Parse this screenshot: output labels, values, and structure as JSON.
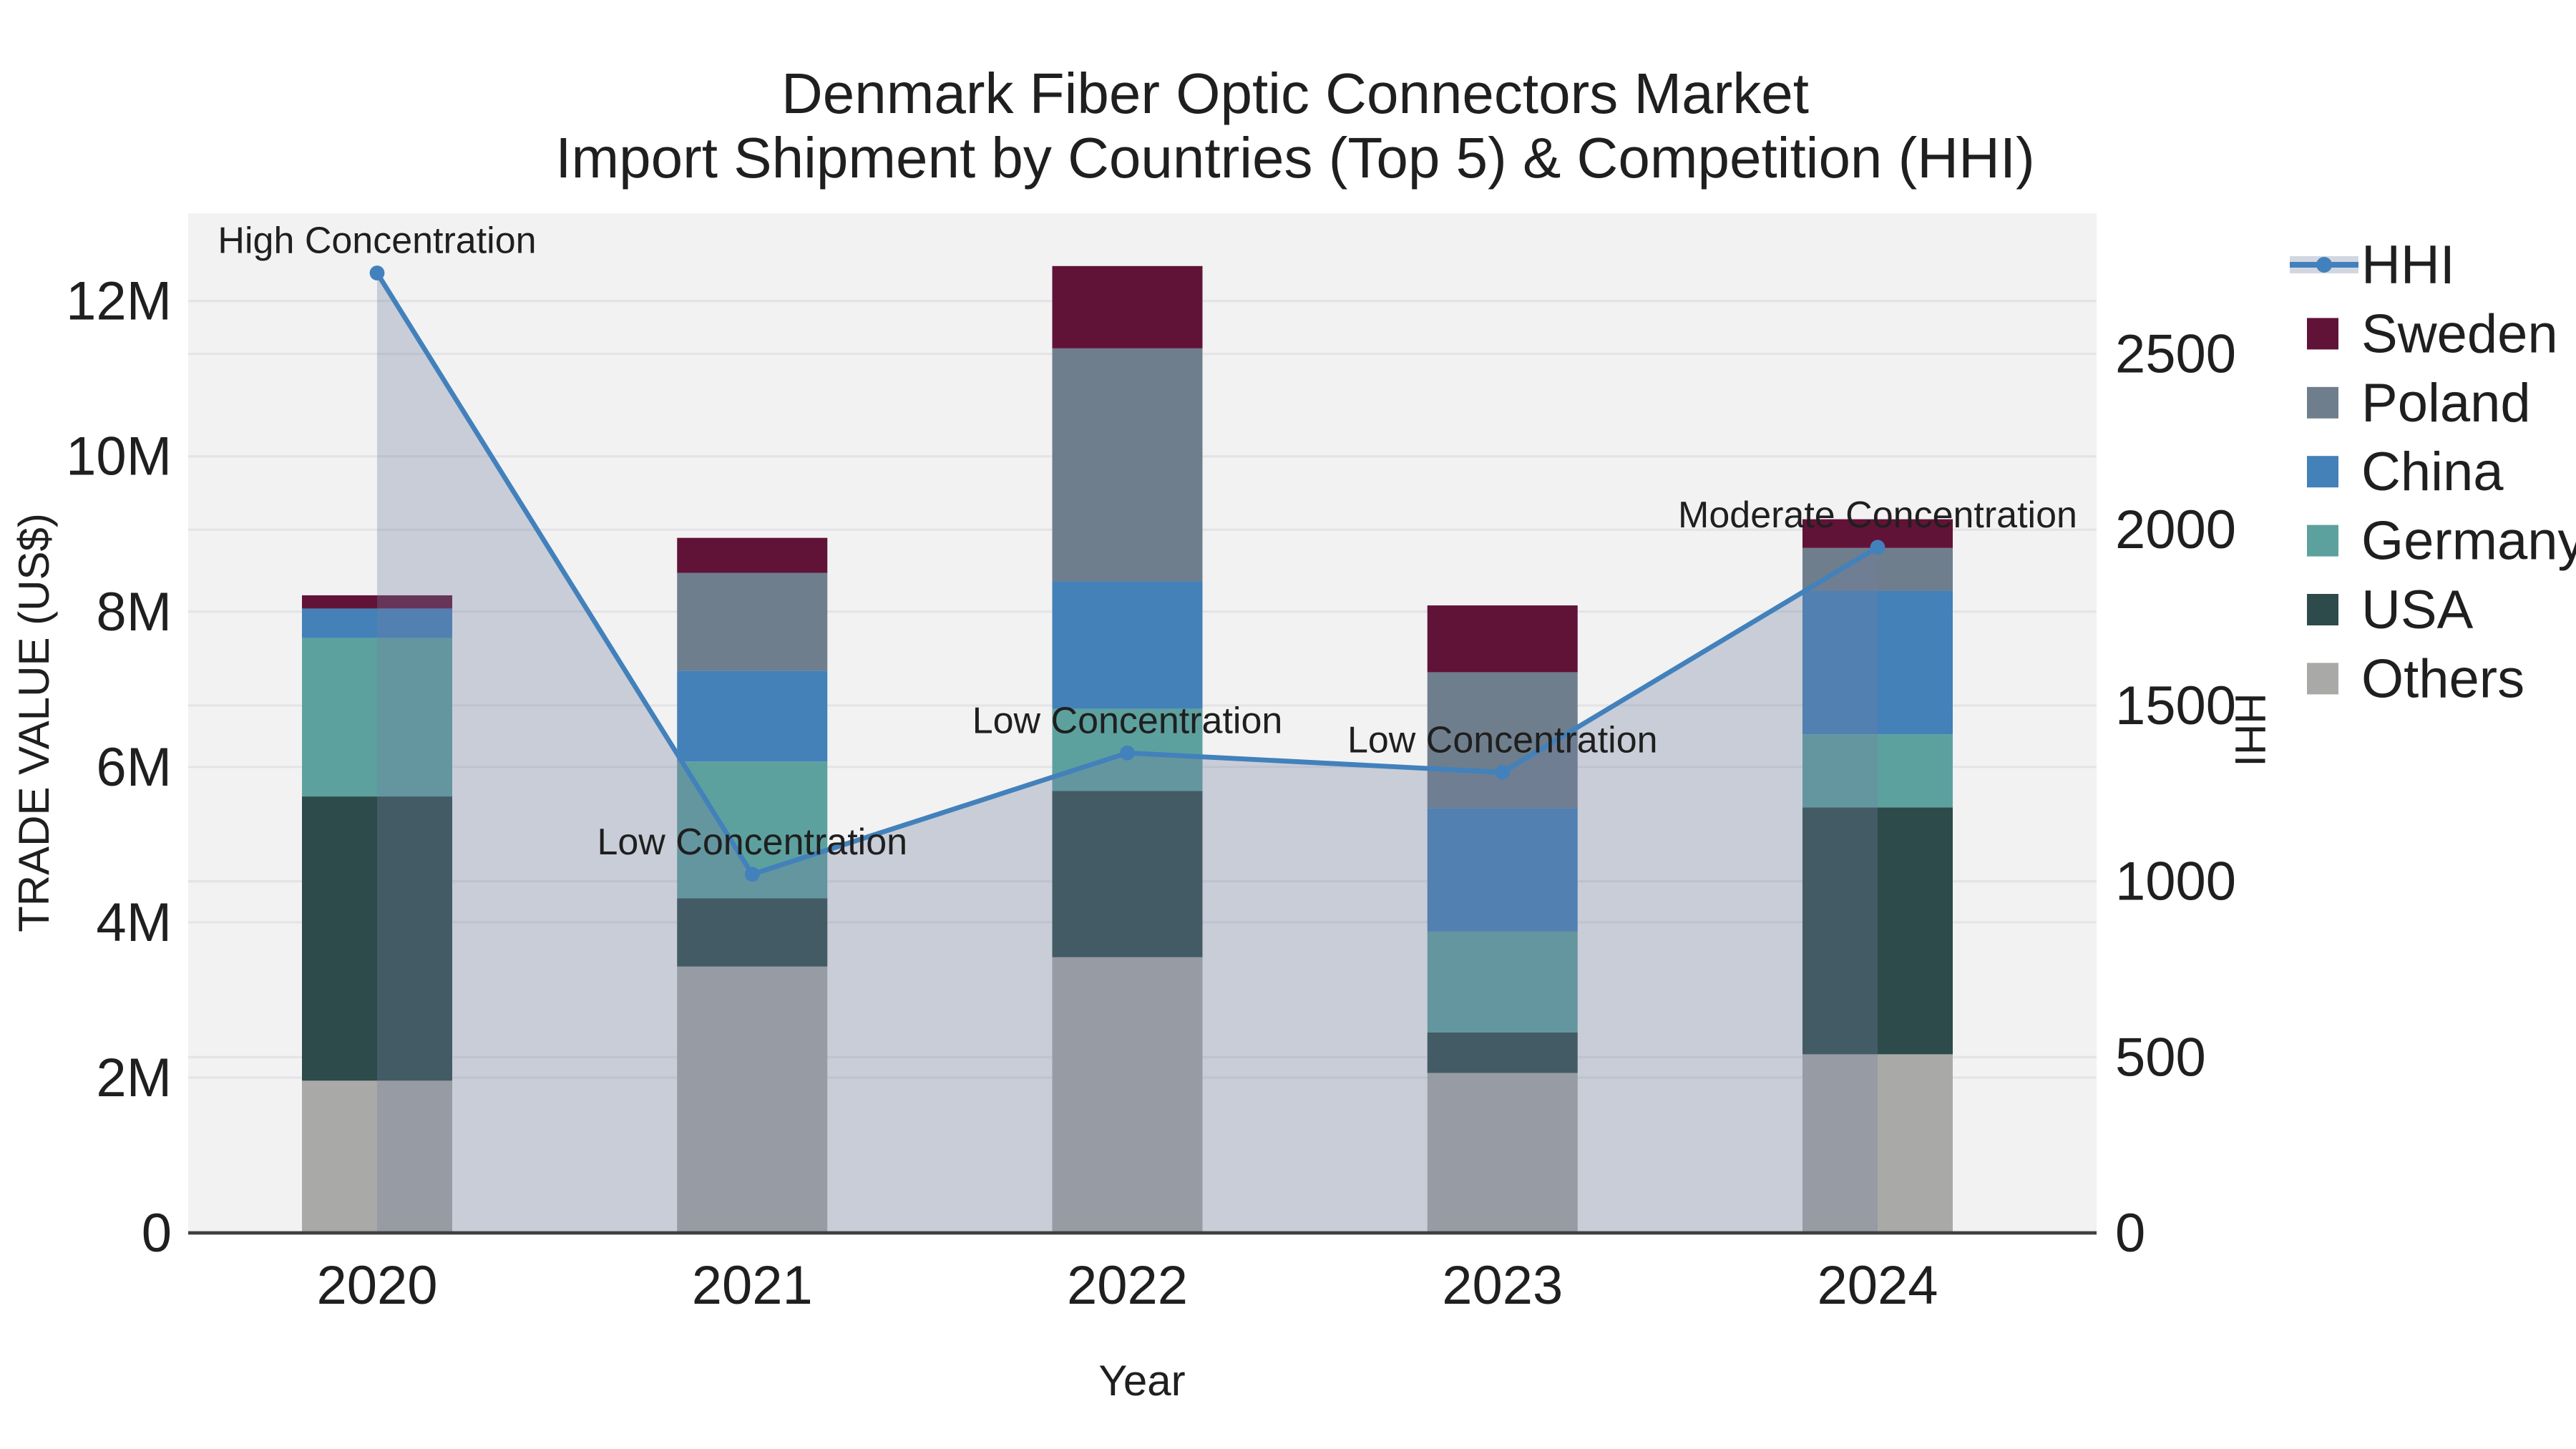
{
  "figure": {
    "title_line1": "Denmark Fiber Optic Connectors Market",
    "title_line2": "Import Shipment by Countries (Top 5) & Competition (HHI)"
  },
  "chart_data": {
    "type": "bar",
    "subtype": "stacked_bars_with_line_area_overlay",
    "title": "Denmark Fiber Optic Connectors Market Import Shipment by Countries (Top 5) & Competition (HHI)",
    "categories": [
      "2020",
      "2021",
      "2022",
      "2023",
      "2024"
    ],
    "xlabel": "Year",
    "grid": true,
    "legend_position": "right-outside",
    "plot_bg_color": "#f2f2f3",
    "gridline_color": "#e4e4e7",
    "axis_line_color": "#3f3f3f",
    "y_left": {
      "title": "TRADE VALUE (US$)",
      "unit": "million US$",
      "range": [
        0,
        13.13
      ],
      "ticks": [
        {
          "v": 0,
          "label": "0"
        },
        {
          "v": 2,
          "label": "2M"
        },
        {
          "v": 4,
          "label": "4M"
        },
        {
          "v": 6,
          "label": "6M"
        },
        {
          "v": 8,
          "label": "8M"
        },
        {
          "v": 10,
          "label": "10M"
        },
        {
          "v": 12,
          "label": "12M"
        }
      ]
    },
    "y_right": {
      "title": "HHI",
      "range": [
        0,
        2900
      ],
      "ticks": [
        {
          "v": 0,
          "label": "0"
        },
        {
          "v": 500,
          "label": "500"
        },
        {
          "v": 1000,
          "label": "1000"
        },
        {
          "v": 1500,
          "label": "1500"
        },
        {
          "v": 2000,
          "label": "2000"
        },
        {
          "v": 2500,
          "label": "2500"
        }
      ]
    },
    "bar_series_bottom_to_top": [
      {
        "name": "Others",
        "color": "#a9a9a7",
        "values_musd": [
          1.96,
          3.43,
          3.55,
          2.06,
          2.3
        ]
      },
      {
        "name": "USA",
        "color": "#2d4b4a",
        "values_musd": [
          3.66,
          0.88,
          2.14,
          0.52,
          3.18
        ]
      },
      {
        "name": "Germany",
        "color": "#5da19f",
        "values_musd": [
          2.04,
          1.76,
          1.06,
          1.3,
          0.94
        ]
      },
      {
        "name": "China",
        "color": "#4381b8",
        "values_musd": [
          0.38,
          1.17,
          1.64,
          1.59,
          1.85
        ]
      },
      {
        "name": "Poland",
        "color": "#6e7e8d",
        "values_musd": [
          0.0,
          1.26,
          3.0,
          1.75,
          0.55
        ]
      },
      {
        "name": "Sweden",
        "color": "#611337",
        "values_musd": [
          0.17,
          0.45,
          1.06,
          0.86,
          0.37
        ]
      }
    ],
    "bar_totals_musd": [
      8.21,
      8.95,
      12.45,
      8.08,
      9.19
    ],
    "line_series": {
      "name": "HHI",
      "values": [
        2730,
        1020,
        1365,
        1310,
        1950
      ],
      "color": "#4281bb",
      "marker_color": "#4281bb",
      "area_fill_color": "rgba(115,128,158,0.32)",
      "legend_band_color": "#d2d6e0"
    },
    "annotations": [
      {
        "category": "2020",
        "text": "High Concentration"
      },
      {
        "category": "2021",
        "text": "Low Concentration"
      },
      {
        "category": "2022",
        "text": "Low Concentration"
      },
      {
        "category": "2023",
        "text": "Low Concentration"
      },
      {
        "category": "2024",
        "text": "Moderate Concentration"
      }
    ],
    "legend_items": [
      "HHI",
      "Sweden",
      "Poland",
      "China",
      "Germany",
      "USA",
      "Others"
    ]
  }
}
